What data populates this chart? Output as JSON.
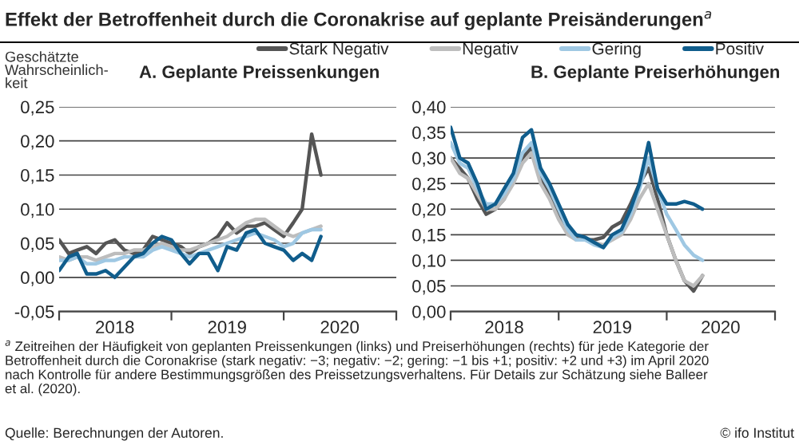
{
  "chart_data": [
    {
      "type": "line",
      "title": "Effekt der Betroffenheit durch die Coronakrise auf geplante Preisänderungen$^{a}$",
      "subtitle": "A. Geplante Preissenkungen",
      "ylabel": "Geschätzte\nWahrscheinlich-\nkeit",
      "legend": "top",
      "grid": "y",
      "x": [
        "2018-01",
        "2018-02",
        "2018-03",
        "2018-04",
        "2018-05",
        "2018-06",
        "2018-07",
        "2018-08",
        "2018-09",
        "2018-10",
        "2018-11",
        "2018-12",
        "2019-01",
        "2019-02",
        "2019-03",
        "2019-04",
        "2019-05",
        "2019-06",
        "2019-07",
        "2019-08",
        "2019-09",
        "2019-10",
        "2019-11",
        "2019-12",
        "2020-01",
        "2020-02",
        "2020-03",
        "2020-04",
        "2020-05"
      ],
      "xlim": [
        "2018-01",
        "2021-01"
      ],
      "xticks": [
        {
          "value": "2018-01",
          "label": null
        },
        {
          "value": "2018-07",
          "label": "2018"
        },
        {
          "value": "2019-01",
          "label": null
        },
        {
          "value": "2019-07",
          "label": "2019"
        },
        {
          "value": "2020-01",
          "label": null
        },
        {
          "value": "2020-07",
          "label": "2020"
        },
        {
          "value": "2021-01",
          "label": null
        }
      ],
      "ylim": [
        -0.05,
        0.25
      ],
      "yticks": [
        {
          "value": -0.05,
          "label": "-0,05"
        },
        {
          "value": 0,
          "label": "0,00"
        },
        {
          "value": 0.05,
          "label": "0,05"
        },
        {
          "value": 0.1,
          "label": "0,10"
        },
        {
          "value": 0.15,
          "label": "0,15"
        },
        {
          "value": 0.2,
          "label": "0,20"
        },
        {
          "value": 0.25,
          "label": "0,25"
        }
      ],
      "series": [
        {
          "name": "Stark Negativ",
          "color": "#555555",
          "values": [
            0.055,
            0.035,
            0.04,
            0.045,
            0.035,
            0.05,
            0.055,
            0.04,
            0.035,
            0.04,
            0.06,
            0.055,
            0.05,
            0.045,
            0.035,
            0.045,
            0.05,
            0.06,
            0.08,
            0.065,
            0.075,
            0.075,
            0.08,
            0.07,
            0.06,
            0.08,
            0.1,
            0.21,
            0.15
          ]
        },
        {
          "name": "Negativ",
          "color": "#bdbdbd",
          "values": [
            0.03,
            0.025,
            0.03,
            0.03,
            0.025,
            0.03,
            0.035,
            0.035,
            0.04,
            0.04,
            0.045,
            0.05,
            0.045,
            0.04,
            0.04,
            0.045,
            0.05,
            0.055,
            0.06,
            0.07,
            0.08,
            0.085,
            0.085,
            0.075,
            0.065,
            0.06,
            0.065,
            0.07,
            0.075
          ]
        },
        {
          "name": "Gering",
          "color": "#9fc8e3",
          "values": [
            0.025,
            0.025,
            0.03,
            0.02,
            0.02,
            0.025,
            0.025,
            0.03,
            0.03,
            0.03,
            0.04,
            0.045,
            0.04,
            0.035,
            0.03,
            0.035,
            0.04,
            0.045,
            0.05,
            0.055,
            0.06,
            0.065,
            0.06,
            0.055,
            0.045,
            0.05,
            0.065,
            0.07,
            0.07
          ]
        },
        {
          "name": "Positiv",
          "color": "#105d8c",
          "values": [
            0.01,
            0.03,
            0.035,
            0.005,
            0.005,
            0.01,
            0.0,
            0.015,
            0.03,
            0.035,
            0.05,
            0.06,
            0.055,
            0.035,
            0.02,
            0.035,
            0.035,
            0.01,
            0.045,
            0.04,
            0.065,
            0.07,
            0.05,
            0.045,
            0.04,
            0.025,
            0.035,
            0.025,
            0.06
          ]
        }
      ],
      "annotations": [
        "$^{a}$ Zeitreihen der Häufigkeit von geplanten Preissenkungen (links) und Preiserhöhungen (rechts) für jede Kategorie der\nBetroffenheit durch die Coronakrise (stark negativ: −3; negativ: −2; gering: −1 bis +1; positiv: +2 und +3) im April 2020\nnach Kontrolle für andere Bestimmungsgrößen des Preissetzungsverhaltens. Für Details zur Schätzung siehe Balleer\net al. (2020).",
        "Quelle: Berechnungen der Autoren.",
        "© ifo Institut"
      ]
    },
    {
      "type": "line",
      "subtitle": "B. Geplante Preiserhöhungen",
      "grid": "y",
      "x": [
        "2018-01",
        "2018-02",
        "2018-03",
        "2018-04",
        "2018-05",
        "2018-06",
        "2018-07",
        "2018-08",
        "2018-09",
        "2018-10",
        "2018-11",
        "2018-12",
        "2019-01",
        "2019-02",
        "2019-03",
        "2019-04",
        "2019-05",
        "2019-06",
        "2019-07",
        "2019-08",
        "2019-09",
        "2019-10",
        "2019-11",
        "2019-12",
        "2020-01",
        "2020-02",
        "2020-03",
        "2020-04",
        "2020-05"
      ],
      "xlim": [
        "2018-01",
        "2021-01"
      ],
      "xticks": [
        {
          "value": "2018-01",
          "label": null
        },
        {
          "value": "2018-07",
          "label": "2018"
        },
        {
          "value": "2019-01",
          "label": null
        },
        {
          "value": "2019-07",
          "label": "2019"
        },
        {
          "value": "2020-01",
          "label": null
        },
        {
          "value": "2020-07",
          "label": "2020"
        },
        {
          "value": "2021-01",
          "label": null
        }
      ],
      "ylim": [
        0,
        0.4
      ],
      "yticks": [
        {
          "value": 0,
          "label": "0,00"
        },
        {
          "value": 0.05,
          "label": "0,05"
        },
        {
          "value": 0.1,
          "label": "0,10"
        },
        {
          "value": 0.15,
          "label": "0,15"
        },
        {
          "value": 0.2,
          "label": "0,20"
        },
        {
          "value": 0.25,
          "label": "0,25"
        },
        {
          "value": 0.3,
          "label": "0,30"
        },
        {
          "value": 0.35,
          "label": "0,35"
        },
        {
          "value": 0.4,
          "label": "0,40"
        }
      ],
      "series": [
        {
          "color": "#555555",
          "values": [
            0.3,
            0.28,
            0.26,
            0.22,
            0.19,
            0.2,
            0.22,
            0.26,
            0.3,
            0.32,
            0.26,
            0.23,
            0.19,
            0.16,
            0.145,
            0.14,
            0.14,
            0.145,
            0.165,
            0.175,
            0.21,
            0.25,
            0.28,
            0.22,
            0.15,
            0.1,
            0.06,
            0.04,
            0.07
          ]
        },
        {
          "color": "#bdbdbd",
          "values": [
            0.3,
            0.27,
            0.26,
            0.23,
            0.2,
            0.2,
            0.22,
            0.25,
            0.29,
            0.31,
            0.25,
            0.22,
            0.18,
            0.15,
            0.14,
            0.14,
            0.135,
            0.13,
            0.14,
            0.15,
            0.18,
            0.22,
            0.25,
            0.2,
            0.15,
            0.1,
            0.06,
            0.05,
            0.07
          ]
        },
        {
          "color": "#9fc8e3",
          "values": [
            0.33,
            0.29,
            0.28,
            0.24,
            0.21,
            0.21,
            0.23,
            0.26,
            0.31,
            0.33,
            0.27,
            0.24,
            0.2,
            0.16,
            0.14,
            0.14,
            0.13,
            0.125,
            0.145,
            0.155,
            0.19,
            0.24,
            0.3,
            0.24,
            0.19,
            0.16,
            0.13,
            0.11,
            0.1
          ]
        },
        {
          "color": "#105d8c",
          "values": [
            0.36,
            0.3,
            0.29,
            0.25,
            0.2,
            0.21,
            0.24,
            0.27,
            0.34,
            0.355,
            0.28,
            0.25,
            0.21,
            0.17,
            0.15,
            0.145,
            0.135,
            0.125,
            0.15,
            0.16,
            0.2,
            0.25,
            0.33,
            0.24,
            0.21,
            0.21,
            0.215,
            0.21,
            0.2
          ]
        }
      ]
    }
  ]
}
